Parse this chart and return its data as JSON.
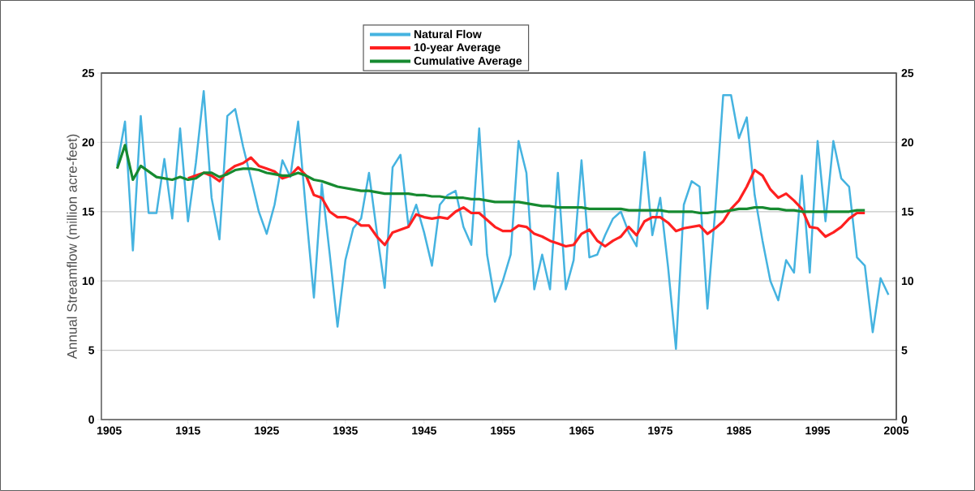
{
  "chart_data": {
    "type": "line",
    "ylabel": "Annual Streamflow (million acre-feet)",
    "xlim": [
      1904,
      2005
    ],
    "xticks": [
      1905,
      1915,
      1925,
      1935,
      1945,
      1955,
      1965,
      1975,
      1985,
      1995,
      2005
    ],
    "ylim": [
      0,
      25
    ],
    "yticks": [
      0,
      5,
      10,
      15,
      20,
      25
    ],
    "y2lim": [
      0,
      25
    ],
    "y2ticks": [
      0,
      5,
      10,
      15,
      20,
      25
    ],
    "grid": "y",
    "legend": "top",
    "marker": "none",
    "line_style": "solid",
    "series": [
      {
        "name": "Natural Flow",
        "color": "#45b3e0",
        "x": [
          1906,
          1907,
          1908,
          1909,
          1910,
          1911,
          1912,
          1913,
          1914,
          1915,
          1916,
          1917,
          1918,
          1919,
          1920,
          1921,
          1922,
          1923,
          1924,
          1925,
          1926,
          1927,
          1928,
          1929,
          1930,
          1931,
          1932,
          1933,
          1934,
          1935,
          1936,
          1937,
          1938,
          1939,
          1940,
          1941,
          1942,
          1943,
          1944,
          1945,
          1946,
          1947,
          1948,
          1949,
          1950,
          1951,
          1952,
          1953,
          1954,
          1955,
          1956,
          1957,
          1958,
          1959,
          1960,
          1961,
          1962,
          1963,
          1964,
          1965,
          1966,
          1967,
          1968,
          1969,
          1970,
          1971,
          1972,
          1973,
          1974,
          1975,
          1976,
          1977,
          1978,
          1979,
          1980,
          1981,
          1982,
          1983,
          1984,
          1985,
          1986,
          1987,
          1988,
          1989,
          1990,
          1991,
          1992,
          1993,
          1994,
          1995,
          1996,
          1997,
          1998,
          1999,
          2000,
          2001,
          2002,
          2003,
          2004
        ],
        "values": [
          18.3,
          21.5,
          12.2,
          21.9,
          14.9,
          14.9,
          18.8,
          14.5,
          21.0,
          14.3,
          18.5,
          23.7,
          16.0,
          13.0,
          21.9,
          22.4,
          19.7,
          17.4,
          15.0,
          13.4,
          15.5,
          18.7,
          17.5,
          21.5,
          15.0,
          8.8,
          17.0,
          12.0,
          6.7,
          11.5,
          13.8,
          14.5,
          17.8,
          13.5,
          9.5,
          18.2,
          19.1,
          14.0,
          15.5,
          13.5,
          11.1,
          15.5,
          16.2,
          16.5,
          13.9,
          12.6,
          21.0,
          11.9,
          8.5,
          10.0,
          11.9,
          20.1,
          17.8,
          9.4,
          11.9,
          9.4,
          17.8,
          9.4,
          11.5,
          18.7,
          11.7,
          11.9,
          13.3,
          14.5,
          15.0,
          13.5,
          12.5,
          19.3,
          13.3,
          16.0,
          11.0,
          5.1,
          15.5,
          17.2,
          16.8,
          8.0,
          15.2,
          23.4,
          23.4,
          20.3,
          21.8,
          16.2,
          12.9,
          10.0,
          8.6,
          11.5,
          10.6,
          17.6,
          10.6,
          20.1,
          14.3,
          20.1,
          17.4,
          16.8,
          11.7,
          11.1,
          6.3,
          10.2,
          9.0
        ]
      },
      {
        "name": "10-year Average",
        "color": "#ff2020",
        "x": [
          1915,
          1916,
          1917,
          1918,
          1919,
          1920,
          1921,
          1922,
          1923,
          1924,
          1925,
          1926,
          1927,
          1928,
          1929,
          1930,
          1931,
          1932,
          1933,
          1934,
          1935,
          1936,
          1937,
          1938,
          1939,
          1940,
          1941,
          1942,
          1943,
          1944,
          1945,
          1946,
          1947,
          1948,
          1949,
          1950,
          1951,
          1952,
          1953,
          1954,
          1955,
          1956,
          1957,
          1958,
          1959,
          1960,
          1961,
          1962,
          1963,
          1964,
          1965,
          1966,
          1967,
          1968,
          1969,
          1970,
          1971,
          1972,
          1973,
          1974,
          1975,
          1976,
          1977,
          1978,
          1979,
          1980,
          1981,
          1982,
          1983,
          1984,
          1985,
          1986,
          1987,
          1988,
          1989,
          1990,
          1991,
          1992,
          1993,
          1994,
          1995,
          1996,
          1997,
          1998,
          1999,
          2000,
          2001
        ],
        "values": [
          17.4,
          17.6,
          17.8,
          17.6,
          17.2,
          17.9,
          18.3,
          18.5,
          18.9,
          18.3,
          18.1,
          17.9,
          17.4,
          17.6,
          18.2,
          17.6,
          16.2,
          16.0,
          15.0,
          14.6,
          14.6,
          14.4,
          14.0,
          14.0,
          13.2,
          12.6,
          13.5,
          13.7,
          13.9,
          14.8,
          14.6,
          14.5,
          14.6,
          14.5,
          15.0,
          15.3,
          14.9,
          14.9,
          14.4,
          13.9,
          13.6,
          13.6,
          14.0,
          13.9,
          13.4,
          13.2,
          12.9,
          12.7,
          12.5,
          12.6,
          13.4,
          13.7,
          12.9,
          12.5,
          12.9,
          13.2,
          13.9,
          13.3,
          14.3,
          14.6,
          14.6,
          14.2,
          13.6,
          13.8,
          13.9,
          14.0,
          13.4,
          13.8,
          14.3,
          15.2,
          15.8,
          16.8,
          18.0,
          17.6,
          16.6,
          16.0,
          16.3,
          15.8,
          15.2,
          13.9,
          13.8,
          13.2,
          13.5,
          13.9,
          14.5,
          14.9,
          14.9
        ]
      },
      {
        "name": "Cumulative Average",
        "color": "#168a30",
        "x": [
          1906,
          1907,
          1908,
          1909,
          1910,
          1911,
          1912,
          1913,
          1914,
          1915,
          1916,
          1917,
          1918,
          1919,
          1920,
          1921,
          1922,
          1923,
          1924,
          1925,
          1926,
          1927,
          1928,
          1929,
          1930,
          1931,
          1932,
          1933,
          1934,
          1935,
          1936,
          1937,
          1938,
          1939,
          1940,
          1941,
          1942,
          1943,
          1944,
          1945,
          1946,
          1947,
          1948,
          1949,
          1950,
          1951,
          1952,
          1953,
          1954,
          1955,
          1956,
          1957,
          1958,
          1959,
          1960,
          1961,
          1962,
          1963,
          1964,
          1965,
          1966,
          1967,
          1968,
          1969,
          1970,
          1971,
          1972,
          1973,
          1974,
          1975,
          1976,
          1977,
          1978,
          1979,
          1980,
          1981,
          1982,
          1983,
          1984,
          1985,
          1986,
          1987,
          1988,
          1989,
          1990,
          1991,
          1992,
          1993,
          1994,
          1995,
          1996,
          1997,
          1998,
          1999,
          2000,
          2001
        ],
        "values": [
          18.1,
          19.8,
          17.3,
          18.3,
          17.9,
          17.5,
          17.4,
          17.3,
          17.5,
          17.3,
          17.4,
          17.8,
          17.8,
          17.5,
          17.7,
          18.0,
          18.1,
          18.1,
          18.0,
          17.8,
          17.7,
          17.6,
          17.6,
          17.8,
          17.6,
          17.3,
          17.2,
          17.0,
          16.8,
          16.7,
          16.6,
          16.5,
          16.5,
          16.4,
          16.3,
          16.3,
          16.3,
          16.3,
          16.2,
          16.2,
          16.1,
          16.1,
          16.0,
          16.0,
          16.0,
          15.9,
          15.9,
          15.8,
          15.7,
          15.7,
          15.7,
          15.7,
          15.6,
          15.5,
          15.4,
          15.4,
          15.3,
          15.3,
          15.3,
          15.3,
          15.2,
          15.2,
          15.2,
          15.2,
          15.2,
          15.1,
          15.1,
          15.1,
          15.1,
          15.1,
          15.0,
          15.0,
          15.0,
          15.0,
          14.9,
          14.9,
          15.0,
          15.0,
          15.1,
          15.2,
          15.2,
          15.3,
          15.3,
          15.2,
          15.2,
          15.1,
          15.1,
          15.0,
          15.0,
          15.0,
          15.0,
          15.0,
          15.0,
          15.0,
          15.1,
          15.1
        ]
      }
    ]
  }
}
